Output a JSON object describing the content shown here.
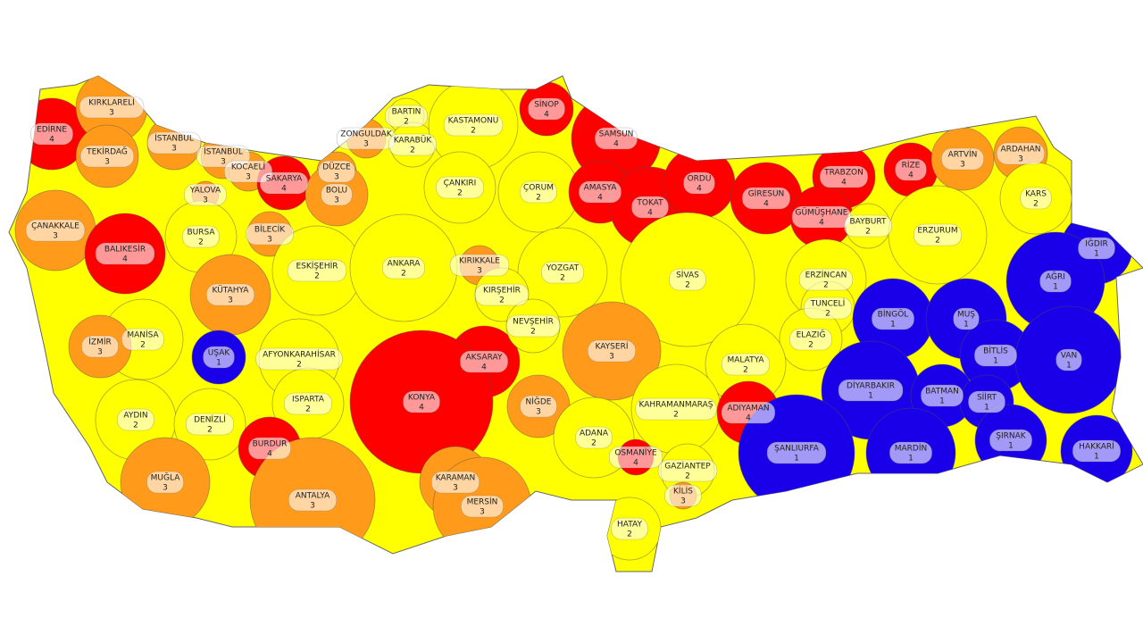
{
  "provinces": [
    {
      "name": "EDİRNE",
      "value": 4
    },
    {
      "name": "KIRKLARELİ",
      "value": 3
    },
    {
      "name": "TEKİRDAĞ",
      "value": 3
    },
    {
      "name": "İSTANBUL",
      "value": 3
    },
    {
      "name": "İSTANBUL",
      "value": 3
    },
    {
      "name": "KOCAELİ",
      "value": 3
    },
    {
      "name": "YALOVA",
      "value": 3
    },
    {
      "name": "SAKARYA",
      "value": 4
    },
    {
      "name": "DÜZCE",
      "value": 3
    },
    {
      "name": "BOLU",
      "value": 3
    },
    {
      "name": "ZONGULDAK",
      "value": 3
    },
    {
      "name": "BARTIN",
      "value": 2
    },
    {
      "name": "KARABÜK",
      "value": 2
    },
    {
      "name": "KASTAMONU",
      "value": 2
    },
    {
      "name": "SİNOP",
      "value": 4
    },
    {
      "name": "SAMSUN",
      "value": 4
    },
    {
      "name": "ÇANAKKALE",
      "value": 3
    },
    {
      "name": "BALIKESİR",
      "value": 4
    },
    {
      "name": "BURSA",
      "value": 2
    },
    {
      "name": "BİLECİK",
      "value": 3
    },
    {
      "name": "ÇANKIRI",
      "value": 2
    },
    {
      "name": "ÇORUM",
      "value": 2
    },
    {
      "name": "AMASYA",
      "value": 4
    },
    {
      "name": "TOKAT",
      "value": 4
    },
    {
      "name": "ORDU",
      "value": 4
    },
    {
      "name": "GİRESUN",
      "value": 4
    },
    {
      "name": "TRABZON",
      "value": 4
    },
    {
      "name": "GÜMÜŞHANE",
      "value": 4
    },
    {
      "name": "RİZE",
      "value": 4
    },
    {
      "name": "ARTVİN",
      "value": 3
    },
    {
      "name": "ARDAHAN",
      "value": 3
    },
    {
      "name": "KARS",
      "value": 2
    },
    {
      "name": "BAYBURT",
      "value": 2
    },
    {
      "name": "ERZURUM",
      "value": 2
    },
    {
      "name": "IĞDIR",
      "value": 1
    },
    {
      "name": "AĞRI",
      "value": 1
    },
    {
      "name": "ESKİŞEHİR",
      "value": 2
    },
    {
      "name": "ANKARA",
      "value": 2
    },
    {
      "name": "KIRIKKALE",
      "value": 3
    },
    {
      "name": "YOZGAT",
      "value": 2
    },
    {
      "name": "SİVAS",
      "value": 2
    },
    {
      "name": "ERZİNCAN",
      "value": 2
    },
    {
      "name": "KÜTAHYA",
      "value": 3
    },
    {
      "name": "KIRŞEHİR",
      "value": 2
    },
    {
      "name": "TUNCELİ",
      "value": 2
    },
    {
      "name": "BİNGÖL",
      "value": 1
    },
    {
      "name": "MUŞ",
      "value": 1
    },
    {
      "name": "MANİSA",
      "value": 2
    },
    {
      "name": "İZMİR",
      "value": 3
    },
    {
      "name": "UŞAK",
      "value": 1
    },
    {
      "name": "AFYONKARAHİSAR",
      "value": 2
    },
    {
      "name": "AKSARAY",
      "value": 4
    },
    {
      "name": "NEVŞEHİR",
      "value": 2
    },
    {
      "name": "KAYSERİ",
      "value": 3
    },
    {
      "name": "ELAZIĞ",
      "value": 2
    },
    {
      "name": "MALATYA",
      "value": 2
    },
    {
      "name": "BİTLİS",
      "value": 1
    },
    {
      "name": "VAN",
      "value": 1
    },
    {
      "name": "DİYARBAKIR",
      "value": 1
    },
    {
      "name": "BATMAN",
      "value": 1
    },
    {
      "name": "SİİRT",
      "value": 1
    },
    {
      "name": "KONYA",
      "value": 4
    },
    {
      "name": "ISPARTA",
      "value": 2
    },
    {
      "name": "NİĞDE",
      "value": 3
    },
    {
      "name": "KAHRAMANMARAŞ",
      "value": 2
    },
    {
      "name": "ADIYAMAN",
      "value": 4
    },
    {
      "name": "AYDIN",
      "value": 2
    },
    {
      "name": "DENİZLİ",
      "value": 2
    },
    {
      "name": "ADANA",
      "value": 2
    },
    {
      "name": "OSMANİYE",
      "value": 4
    },
    {
      "name": "BURDUR",
      "value": 4
    },
    {
      "name": "ŞANLIURFA",
      "value": 1
    },
    {
      "name": "MARDİN",
      "value": 1
    },
    {
      "name": "ŞIRNAK",
      "value": 1
    },
    {
      "name": "HAKKARİ",
      "value": 1
    },
    {
      "name": "GAZİANTEP",
      "value": 2
    },
    {
      "name": "KİLİS",
      "value": 3
    },
    {
      "name": "KARAMAN",
      "value": 3
    },
    {
      "name": "MERSİN",
      "value": 3
    },
    {
      "name": "MUĞLA",
      "value": 3
    },
    {
      "name": "ANTALYA",
      "value": 3
    },
    {
      "name": "HATAY",
      "value": 2
    }
  ],
  "colors": {
    "1": "#1a00e8",
    "2": "#ffff00",
    "3": "#ff9a1a",
    "4": "#ff0000"
  }
}
